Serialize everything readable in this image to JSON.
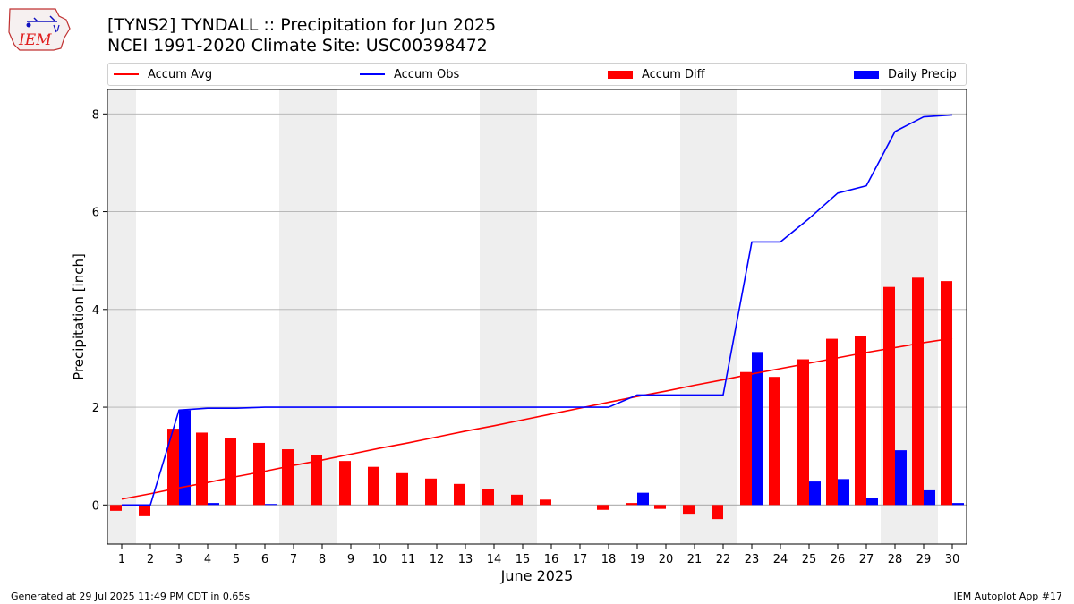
{
  "header": {
    "title_line1": "[TYNS2] TYNDALL :: Precipitation for Jun 2025",
    "title_line2": "NCEI 1991-2020 Climate Site: USC00398472"
  },
  "logo": {
    "text": "IEM",
    "icon": "iem-iowa-map-logo"
  },
  "footer": {
    "generated": "Generated at 29 Jul 2025 11:49 PM CDT in 0.65s",
    "app": "IEM Autoplot App #17"
  },
  "colors": {
    "accum_avg": "#ff0000",
    "accum_obs": "#0000ff",
    "accum_diff": "#ff0000",
    "daily_precip": "#0000ff",
    "weekend_shade": "#eeeeee",
    "grid": "#b0b0b0"
  },
  "chart_data": {
    "type": "bar",
    "xlabel": "June 2025",
    "ylabel": "Precipitation [inch]",
    "ylim": [
      -0.8,
      8.5
    ],
    "yticks": [
      0,
      2,
      4,
      6,
      8
    ],
    "grid": "horizontal",
    "legend_placement": "top",
    "legend": [
      "Accum Avg",
      "Accum Obs",
      "Accum Diff",
      "Daily Precip"
    ],
    "shaded_days": [
      1,
      7,
      8,
      14,
      15,
      21,
      22,
      28,
      29
    ],
    "days": [
      1,
      2,
      3,
      4,
      5,
      6,
      7,
      8,
      9,
      10,
      11,
      12,
      13,
      14,
      15,
      16,
      17,
      18,
      19,
      20,
      21,
      22,
      23,
      24,
      25,
      26,
      27,
      28,
      29,
      30
    ],
    "series": [
      {
        "name": "Accum Avg",
        "kind": "line",
        "values": [
          0.12,
          0.23,
          0.35,
          0.46,
          0.58,
          0.69,
          0.81,
          0.92,
          1.04,
          1.16,
          1.27,
          1.39,
          1.51,
          1.62,
          1.74,
          1.86,
          1.98,
          2.1,
          2.22,
          2.33,
          2.45,
          2.56,
          2.68,
          2.79,
          2.9,
          3.01,
          3.12,
          3.22,
          3.32,
          3.41
        ]
      },
      {
        "name": "Accum Obs",
        "kind": "line",
        "values": [
          0.0,
          0.0,
          1.94,
          1.98,
          1.98,
          2.0,
          2.0,
          2.0,
          2.0,
          2.0,
          2.0,
          2.0,
          2.0,
          2.0,
          2.0,
          2.0,
          2.0,
          2.0,
          2.25,
          2.25,
          2.25,
          2.25,
          5.38,
          5.38,
          5.86,
          6.38,
          6.53,
          7.64,
          7.94,
          7.98
        ]
      },
      {
        "name": "Accum Diff",
        "kind": "bar",
        "values": [
          -0.12,
          -0.23,
          1.56,
          1.48,
          1.36,
          1.27,
          1.14,
          1.03,
          0.9,
          0.78,
          0.65,
          0.54,
          0.43,
          0.32,
          0.21,
          0.11,
          0.0,
          -0.1,
          0.04,
          -0.08,
          -0.18,
          -0.29,
          2.72,
          2.62,
          2.98,
          3.4,
          3.45,
          4.46,
          4.65,
          4.58
        ]
      },
      {
        "name": "Daily Precip",
        "kind": "bar",
        "values": [
          0.0,
          0.0,
          1.94,
          0.04,
          0.0,
          0.02,
          0.0,
          0.0,
          0.0,
          0.0,
          0.0,
          0.0,
          0.0,
          0.0,
          0.0,
          0.0,
          0.0,
          0.0,
          0.25,
          0.0,
          0.0,
          0.0,
          3.13,
          0.0,
          0.48,
          0.53,
          0.15,
          1.12,
          0.3,
          0.04
        ]
      }
    ]
  }
}
